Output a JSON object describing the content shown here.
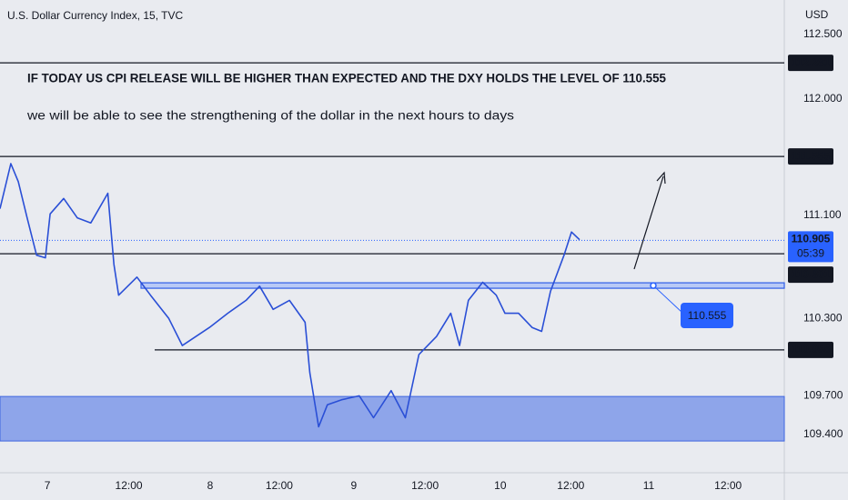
{
  "chart_data": {
    "type": "line",
    "title": "U.S. Dollar Currency Index, 15, TVC",
    "y_axis_label": "USD",
    "color": "#2a4fd6",
    "annotations": [
      "IF TODAY US CPI RELEASE WILL BE HIGHER THAN EXPECTED AND THE DXY HOLDS THE LEVEL OF 110.555",
      "we will be able to see the strengthening of the dollar in the next hours to days"
    ],
    "x": [
      -7.0,
      -5.4,
      -4.3,
      -3.0,
      -1.6,
      -0.3,
      0.4,
      2.4,
      4.4,
      6.4,
      8.9,
      9.8,
      10.5,
      13.2,
      15.2,
      17.9,
      19.9,
      23.9,
      26.6,
      29.3,
      31.3,
      33.3,
      35.7,
      38.0,
      38.7,
      40.0,
      41.3,
      43.4,
      46.0,
      48.1,
      50.7,
      52.8,
      54.8,
      57.4,
      59.5,
      60.8,
      62.1,
      64.2,
      66.2,
      67.5,
      69.5,
      71.5,
      72.9,
      74.2,
      76.2,
      77.3,
      78.5
    ],
    "values": [
      111.15,
      111.5,
      111.36,
      111.08,
      110.79,
      110.77,
      111.11,
      111.23,
      111.08,
      111.04,
      111.27,
      110.72,
      110.48,
      110.62,
      110.48,
      110.3,
      110.09,
      110.23,
      110.34,
      110.44,
      110.55,
      110.37,
      110.44,
      110.27,
      109.88,
      109.46,
      109.63,
      109.67,
      109.7,
      109.53,
      109.74,
      109.53,
      110.02,
      110.16,
      110.34,
      110.09,
      110.44,
      110.58,
      110.48,
      110.34,
      110.34,
      110.23,
      110.2,
      110.51,
      110.79,
      110.97,
      110.91
    ],
    "xlim": [
      -7,
      108.7
    ],
    "xticks": [
      {
        "value": 0,
        "label": "7"
      },
      {
        "value": 12,
        "label": "12:00"
      },
      {
        "value": 24,
        "label": "8"
      },
      {
        "value": 34.2,
        "label": "12:00"
      },
      {
        "value": 45.2,
        "label": "9"
      },
      {
        "value": 55.7,
        "label": "12:00"
      },
      {
        "value": 66.8,
        "label": "10"
      },
      {
        "value": 77.2,
        "label": "12:00"
      },
      {
        "value": 88.7,
        "label": "11"
      },
      {
        "value": 100.4,
        "label": "12:00"
      }
    ],
    "ylim": [
      109.104,
      112.768
    ],
    "yticks": [
      {
        "value": 112.5,
        "label": "112.500"
      },
      {
        "value": 112.0,
        "label": "112.000"
      },
      {
        "value": 111.1,
        "label": "111.100"
      },
      {
        "value": 110.3,
        "label": "110.300"
      },
      {
        "value": 109.7,
        "label": "109.700"
      },
      {
        "value": 109.4,
        "label": "109.400"
      }
    ],
    "levels": [
      112.281,
      111.555,
      110.801,
      110.056
    ],
    "current_price": 110.905,
    "countdown": "05:39",
    "key_level": 110.555,
    "zone": [
      109.35,
      109.695
    ]
  }
}
